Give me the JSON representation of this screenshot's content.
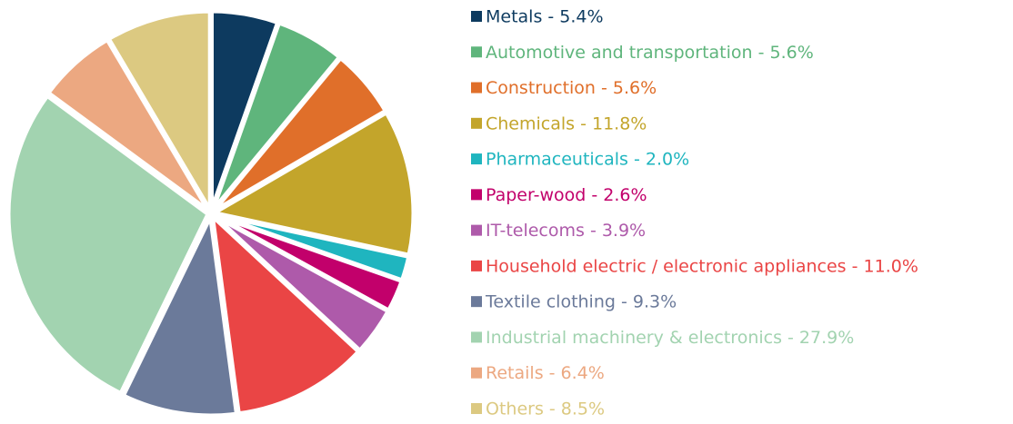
{
  "chart_data": {
    "type": "pie",
    "categories": [
      "Metals - 5.4%",
      "Automotive and transportation - 5.6%",
      "Construction - 5.6%",
      "Chemicals - 11.8%",
      "Pharmaceuticals - 2.0%",
      "Paper-wood - 2.6%",
      "IT-telecoms - 3.9%",
      "Household electric / electronic appliances - 11.0%",
      "Textile clothing - 9.3%",
      "Industrial machinery & electronics - 27.9%",
      "Retails - 6.4%",
      "Others - 8.5%"
    ],
    "values": [
      5.4,
      5.6,
      5.6,
      11.8,
      2.0,
      2.6,
      3.9,
      11.0,
      9.3,
      27.9,
      6.4,
      8.5
    ],
    "colors": [
      "#0d3a5f",
      "#5fb57c",
      "#e06f2a",
      "#c3a52b",
      "#1fb5bf",
      "#c2006b",
      "#ae5aaa",
      "#ea4545",
      "#6b7a9a",
      "#a2d3b0",
      "#eca881",
      "#dcc981"
    ],
    "legend": "right"
  }
}
